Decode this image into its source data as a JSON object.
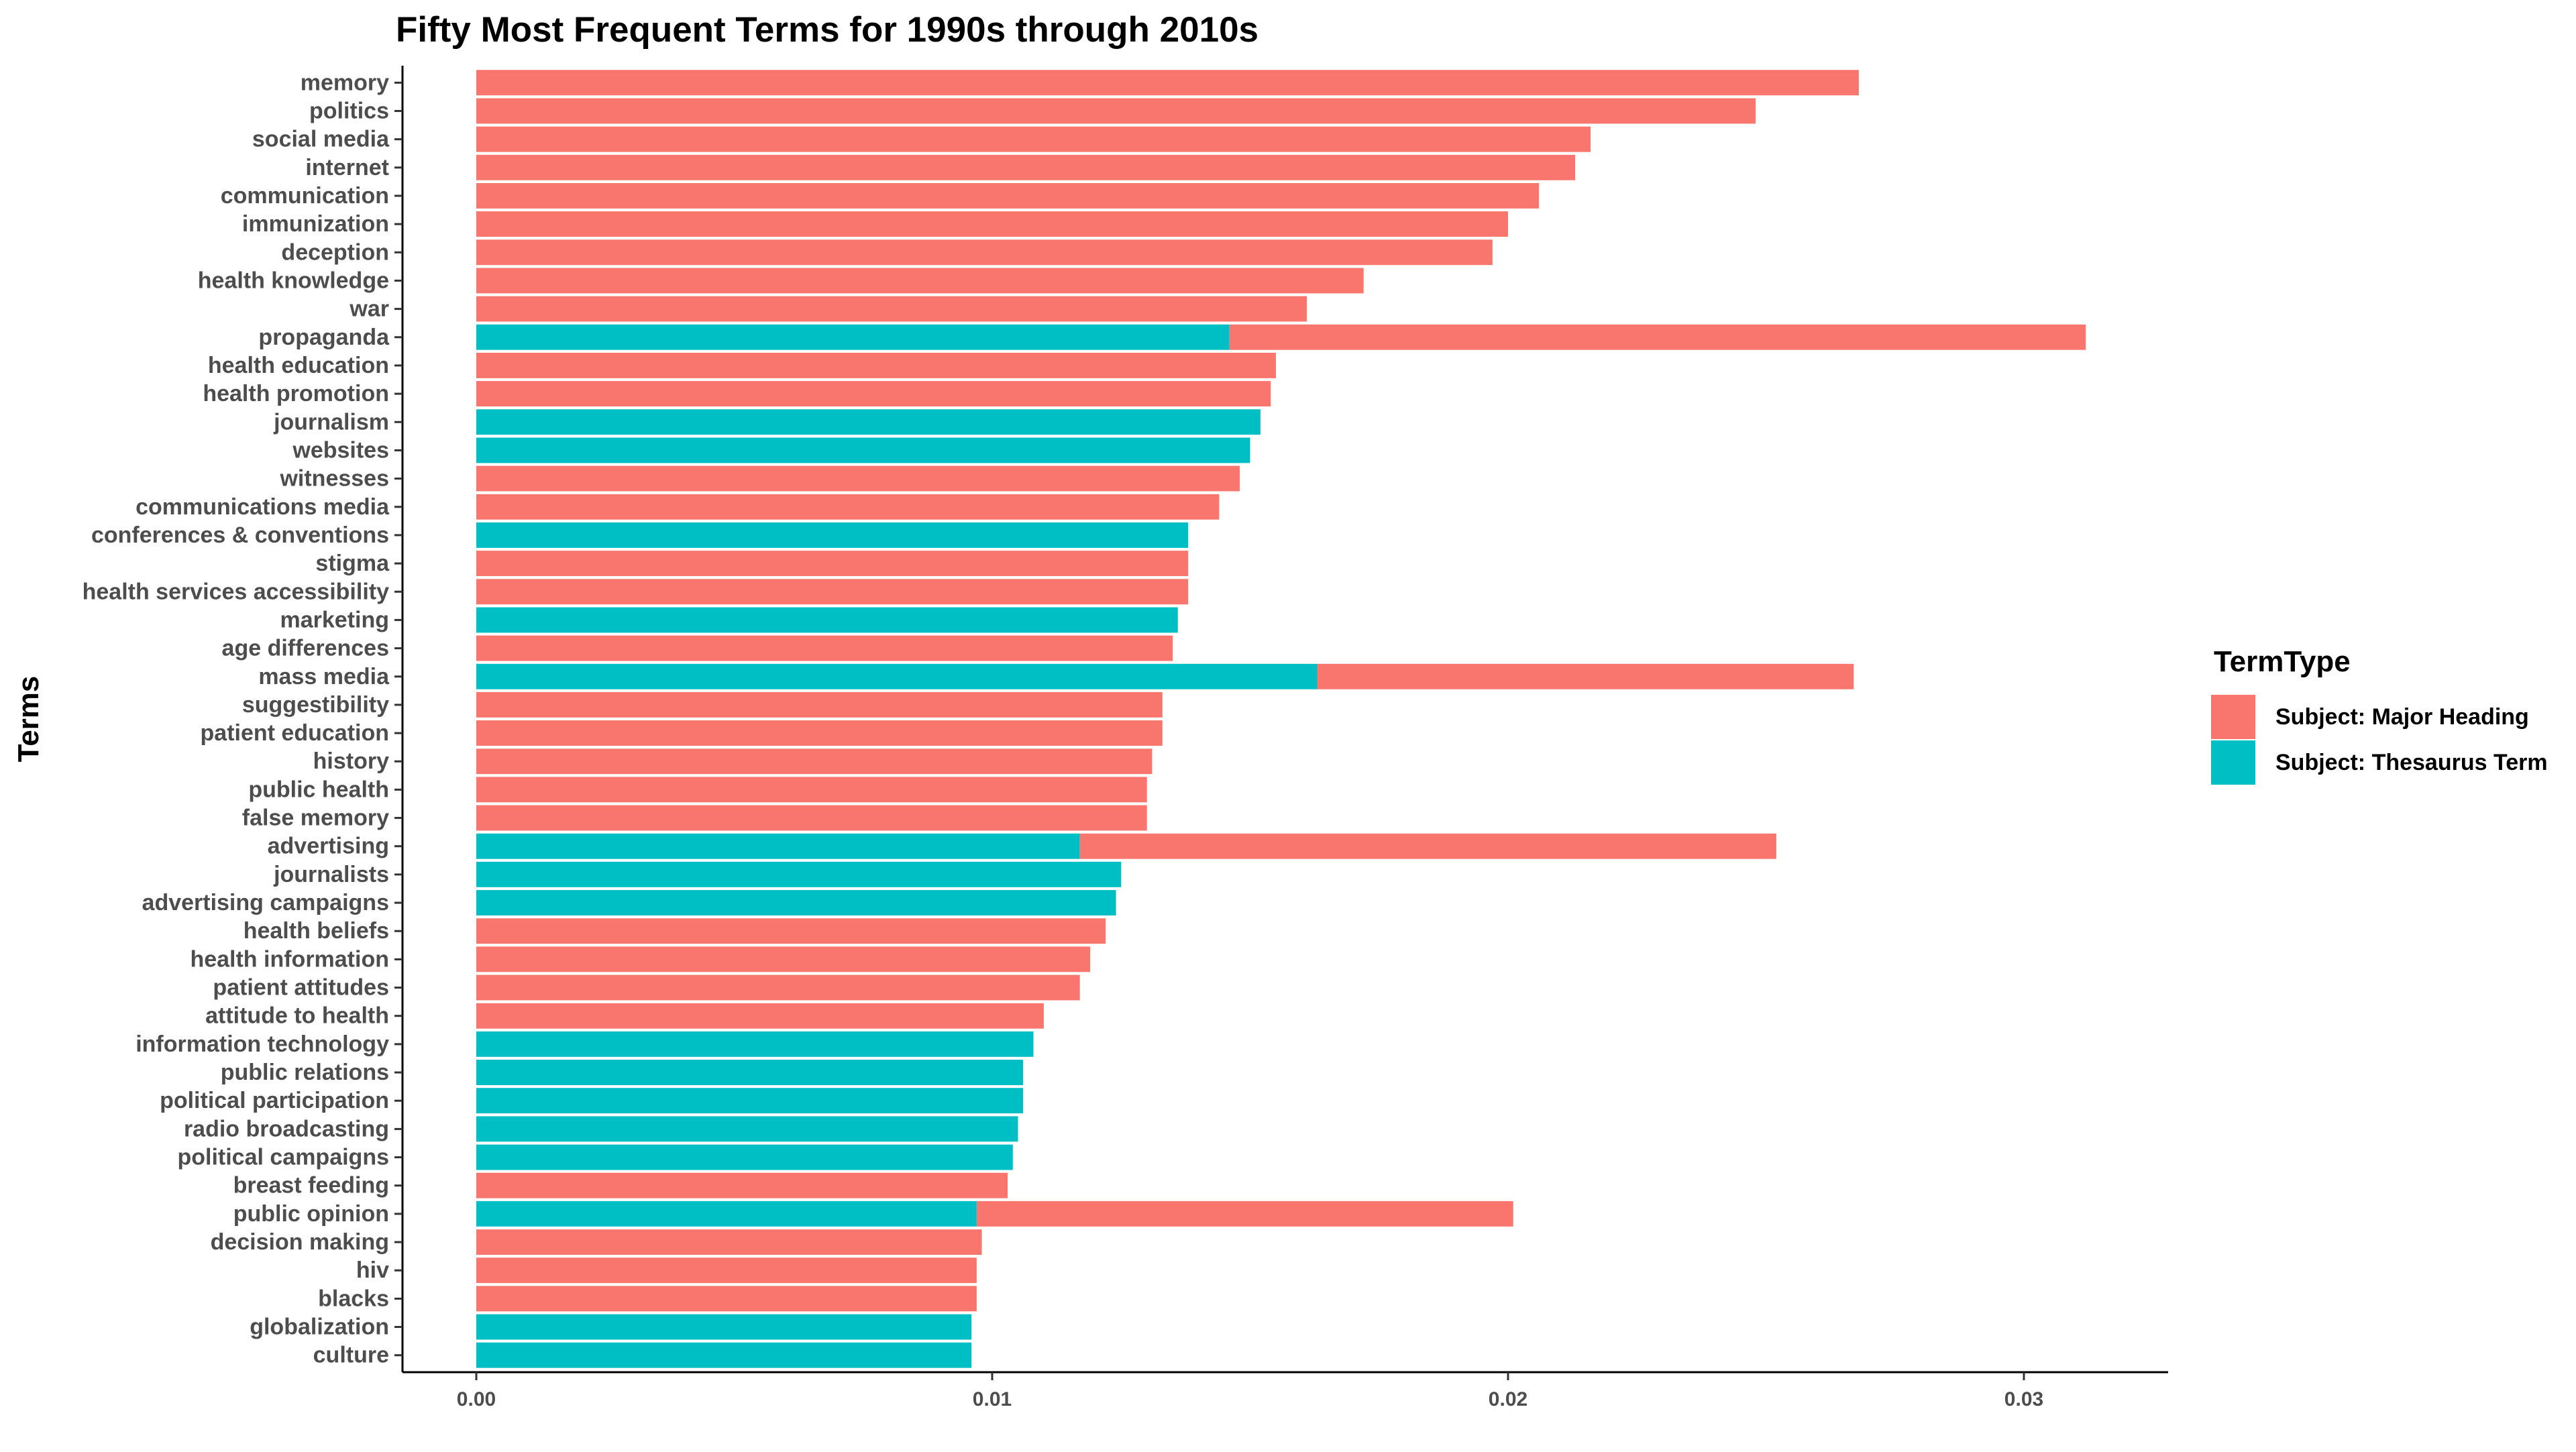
{
  "chart_data": {
    "type": "bar",
    "orientation": "horizontal",
    "stacked": true,
    "title": "Fifty Most Frequent Terms for 1990s through 2010s",
    "xlabel": "",
    "ylabel": "Terms",
    "xlim": [
      0,
      0.0327
    ],
    "x_ticks": [
      0.0,
      0.01,
      0.02,
      0.03
    ],
    "x_tick_labels": [
      "0.00",
      "0.01",
      "0.02",
      "0.03"
    ],
    "grid": false,
    "legend_position": "right",
    "legend": {
      "title": "TermType",
      "entries": [
        {
          "label": "Subject: Major Heading",
          "color": "#F8766D"
        },
        {
          "label": "Subject: Thesaurus Term",
          "color": "#00BFC4"
        }
      ]
    },
    "categories": [
      "memory",
      "politics",
      "social media",
      "internet",
      "communication",
      "immunization",
      "deception",
      "health knowledge",
      "war",
      "propaganda",
      "health education",
      "health promotion",
      "journalism",
      "websites",
      "witnesses",
      "communications media",
      "conferences & conventions",
      "stigma",
      "health services accessibility",
      "marketing",
      "age differences",
      "mass media",
      "suggestibility",
      "patient education",
      "history",
      "public health",
      "false memory",
      "advertising",
      "journalists",
      "advertising campaigns",
      "health beliefs",
      "health information",
      "patient attitudes",
      "attitude to health",
      "information technology",
      "public relations",
      "political participation",
      "radio broadcasting",
      "political campaigns",
      "breast feeding",
      "public opinion",
      "decision making",
      "hiv",
      "blacks",
      "globalization",
      "culture"
    ],
    "series": [
      {
        "name": "Subject: Thesaurus Term",
        "color": "#00BFC4",
        "values": [
          0,
          0,
          0,
          0,
          0,
          0,
          0,
          0,
          0,
          0.0146,
          0,
          0,
          0.0152,
          0.015,
          0,
          0,
          0.0138,
          0,
          0,
          0.0136,
          0,
          0.0163,
          0,
          0,
          0,
          0,
          0,
          0.0117,
          0.0125,
          0.0124,
          0,
          0,
          0,
          0,
          0.0108,
          0.0106,
          0.0106,
          0.0105,
          0.0104,
          0,
          0.0097,
          0,
          0,
          0,
          0.0096,
          0.0096
        ]
      },
      {
        "name": "Subject: Major Heading",
        "color": "#F8766D",
        "values": [
          0.0268,
          0.0248,
          0.0216,
          0.0213,
          0.0206,
          0.02,
          0.0197,
          0.0172,
          0.0161,
          0.0166,
          0.0155,
          0.0154,
          0,
          0,
          0.0148,
          0.0144,
          0,
          0.0138,
          0.0138,
          0,
          0.0135,
          0.0104,
          0.0133,
          0.0133,
          0.0131,
          0.013,
          0.013,
          0.0135,
          0,
          0,
          0.0122,
          0.0119,
          0.0117,
          0.011,
          0,
          0,
          0,
          0,
          0,
          0.0103,
          0.0104,
          0.0098,
          0.0097,
          0.0097,
          0,
          0
        ]
      }
    ]
  }
}
